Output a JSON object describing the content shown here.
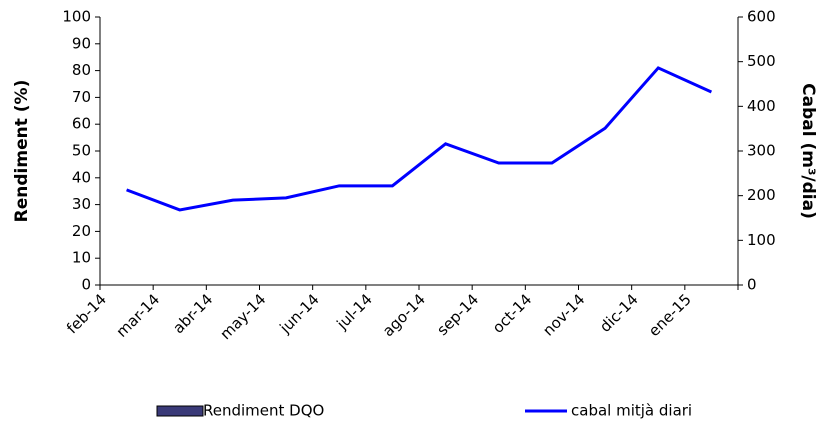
{
  "chart_data": {
    "type": "line",
    "categories": [
      "feb-14",
      "mar-14",
      "abr-14",
      "may-14",
      "jun-14",
      "jul-14",
      "ago-14",
      "sep-14",
      "oct-14",
      "nov-14",
      "dic-14",
      "ene-15"
    ],
    "series": [
      {
        "name": "Rendiment DQO",
        "color": "#3a3a78",
        "axis": "y",
        "kind": "bar",
        "values": [
          null,
          null,
          null,
          null,
          null,
          null,
          null,
          null,
          null,
          null,
          null,
          null
        ]
      },
      {
        "name": "cabal mitjà diari",
        "color": "#0000ff",
        "axis": "y2",
        "values": [
          213,
          168,
          190,
          195,
          222,
          222,
          316,
          273,
          273,
          351,
          486,
          432
        ]
      }
    ],
    "ylabel": "Rendiment (%)",
    "y2label": "Cabal (m³/dia)",
    "ylim": [
      0,
      100
    ],
    "yticks": [
      0,
      10,
      20,
      30,
      40,
      50,
      60,
      70,
      80,
      90,
      100
    ],
    "y2lim": [
      0,
      600
    ],
    "y2ticks": [
      0,
      100,
      200,
      300,
      400,
      500,
      600
    ],
    "grid": false,
    "legend": "bottom"
  }
}
